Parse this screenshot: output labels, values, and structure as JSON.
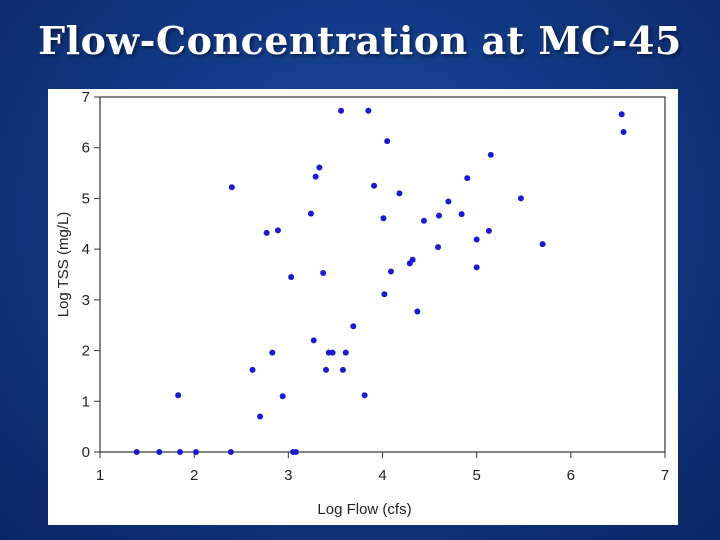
{
  "slide": {
    "title": "Flow-Concentration at MC-45",
    "background": "#123a86"
  },
  "chart_data": {
    "type": "scatter",
    "title": "",
    "xlabel": "Log Flow (cfs)",
    "ylabel": "Log TSS (mg/L)",
    "xlim": [
      1,
      7
    ],
    "ylim": [
      0,
      7
    ],
    "x_ticks": [
      "1",
      "2",
      "3",
      "4",
      "5",
      "6",
      "7"
    ],
    "y_ticks": [
      "0",
      "1",
      "2",
      "3",
      "4",
      "5",
      "6",
      "7"
    ],
    "grid": false,
    "legend": "none",
    "marker_color": "#1a1ad0",
    "points": [
      {
        "x": 1.39,
        "y": 0.0
      },
      {
        "x": 1.63,
        "y": 0.0
      },
      {
        "x": 1.85,
        "y": 0.0
      },
      {
        "x": 2.02,
        "y": 0.0
      },
      {
        "x": 2.39,
        "y": 0.0
      },
      {
        "x": 3.05,
        "y": 0.0
      },
      {
        "x": 3.08,
        "y": 0.0
      },
      {
        "x": 1.83,
        "y": 1.12
      },
      {
        "x": 2.4,
        "y": 5.22
      },
      {
        "x": 2.62,
        "y": 1.62
      },
      {
        "x": 2.7,
        "y": 0.7
      },
      {
        "x": 2.77,
        "y": 4.32
      },
      {
        "x": 2.83,
        "y": 1.96
      },
      {
        "x": 2.89,
        "y": 4.37
      },
      {
        "x": 2.94,
        "y": 1.1
      },
      {
        "x": 3.03,
        "y": 3.45
      },
      {
        "x": 3.24,
        "y": 4.7
      },
      {
        "x": 3.27,
        "y": 2.2
      },
      {
        "x": 3.29,
        "y": 5.43
      },
      {
        "x": 3.33,
        "y": 5.61
      },
      {
        "x": 3.37,
        "y": 3.53
      },
      {
        "x": 3.4,
        "y": 1.62
      },
      {
        "x": 3.43,
        "y": 1.96
      },
      {
        "x": 3.47,
        "y": 1.96
      },
      {
        "x": 3.56,
        "y": 6.73
      },
      {
        "x": 3.58,
        "y": 1.62
      },
      {
        "x": 3.61,
        "y": 1.96
      },
      {
        "x": 3.69,
        "y": 2.48
      },
      {
        "x": 3.81,
        "y": 1.12
      },
      {
        "x": 3.85,
        "y": 6.73
      },
      {
        "x": 3.91,
        "y": 5.25
      },
      {
        "x": 4.01,
        "y": 4.61
      },
      {
        "x": 4.02,
        "y": 3.11
      },
      {
        "x": 4.05,
        "y": 6.13
      },
      {
        "x": 4.09,
        "y": 3.56
      },
      {
        "x": 4.18,
        "y": 5.1
      },
      {
        "x": 4.29,
        "y": 3.72
      },
      {
        "x": 4.32,
        "y": 3.79
      },
      {
        "x": 4.37,
        "y": 2.77
      },
      {
        "x": 4.44,
        "y": 4.56
      },
      {
        "x": 4.59,
        "y": 4.04
      },
      {
        "x": 4.6,
        "y": 4.66
      },
      {
        "x": 4.7,
        "y": 4.94
      },
      {
        "x": 4.84,
        "y": 4.69
      },
      {
        "x": 4.9,
        "y": 5.4
      },
      {
        "x": 5.0,
        "y": 4.19
      },
      {
        "x": 5.0,
        "y": 3.64
      },
      {
        "x": 5.13,
        "y": 4.36
      },
      {
        "x": 5.15,
        "y": 5.86
      },
      {
        "x": 5.47,
        "y": 5.0
      },
      {
        "x": 5.7,
        "y": 4.1
      },
      {
        "x": 6.54,
        "y": 6.66
      },
      {
        "x": 6.56,
        "y": 6.31
      }
    ]
  }
}
